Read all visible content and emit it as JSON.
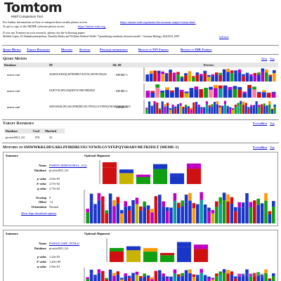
{
  "header": {
    "title": "Tomtom",
    "subtitle": "Motif Comparison Tool"
  },
  "info": {
    "line1_text": "For further information on how to interpret these results please access ",
    "line1_link": "https://meme-suite.org/meme/doc/tomtom-output-format.html.",
    "line2_text": "To get a copy of the MEME software please access ",
    "line2_link": "https://meme-suite.org.",
    "cite_intro": "If you use Tomtom in your research, please cite the following paper:",
    "citation": "Shobhit Gupta, JA Stamatoyannopolous, Timothy Bailey and William Stafford Noble, \"Quantifying similarity between motifs\", Genome Biology, 8(2):R24, 2007.",
    "full_text": "full text"
  },
  "nav": [
    "Query Motifs",
    "Target Databases",
    "Matches",
    "Settings",
    "Program information",
    "Results in TSV Format",
    "Results in XML Format"
  ],
  "query_motifs": {
    "heading": "Query Motifs",
    "links": [
      "Next",
      "Top"
    ],
    "columns": [
      "Database",
      "ID",
      "Alt. ID",
      "Preview"
    ],
    "rows": [
      [
        "meme.xml",
        "AWKDGWKEQLKPTRFRPLVKAVNLARVIEVDQAG",
        "MEME-3"
      ],
      [
        "meme.xml",
        "DLHTVALRPLLRQHDYWVSRVFHKFKD",
        "MEME-2"
      ],
      [
        "meme.xml",
        "SMWWKKLDFGAKLPFIRDRLVECYFWILGVYFEPQYSRARVMLTKIISLT",
        "MEME-1"
      ]
    ]
  },
  "target_databases": {
    "heading": "Target Databases",
    "links": [
      "Previous",
      "Next",
      "Top"
    ],
    "columns": [
      "Database",
      "Used",
      "Matched"
    ],
    "rows": [
      [
        "prosite2021_04",
        "976",
        "32"
      ]
    ]
  },
  "matches": {
    "heading": "Matches to SMWWKKLDFGAKLPFIRDRLVECYFWILGVYFEPQYSRARVMLTKIISLT (MEME-1)",
    "links": [
      "Previous",
      "Next",
      "Top"
    ],
    "summary_header": "Summary",
    "alignment_header": "Optional Alignment",
    "entries": [
      {
        "groups": [
          [
            {
              "label": "Name",
              "value": "PS00055 (RIBOSOMAL_S12)"
            },
            {
              "label": "Database",
              "value": "prosite2021_04"
            }
          ],
          [
            {
              "label": "p-value",
              "value": "2.63e-05"
            },
            {
              "label": "E-value",
              "value": "2.57e-02"
            },
            {
              "label": "q-value",
              "value": "2.73e-02"
            }
          ],
          [
            {
              "label": "Overlap",
              "value": "9"
            },
            {
              "label": "Offset",
              "value": "-11"
            },
            {
              "label": "Orientation",
              "value": "Normal"
            }
          ]
        ],
        "options": "Show logo download options",
        "target": "RPNSAR"
      },
      {
        "groups": [
          [
            {
              "label": "Name",
              "value": "PS00320 (ARF_INTRA)"
            },
            {
              "label": "Database",
              "value": "prosite2021_04"
            }
          ],
          [
            {
              "label": "p-value",
              "value": "1.23e-03"
            },
            {
              "label": "E-value",
              "value": "1.20e+00"
            },
            {
              "label": "q-value",
              "value": "5.93e-01"
            }
          ]
        ],
        "target": "RPNSAR"
      }
    ]
  },
  "watermark": "CSDN @星石传说"
}
